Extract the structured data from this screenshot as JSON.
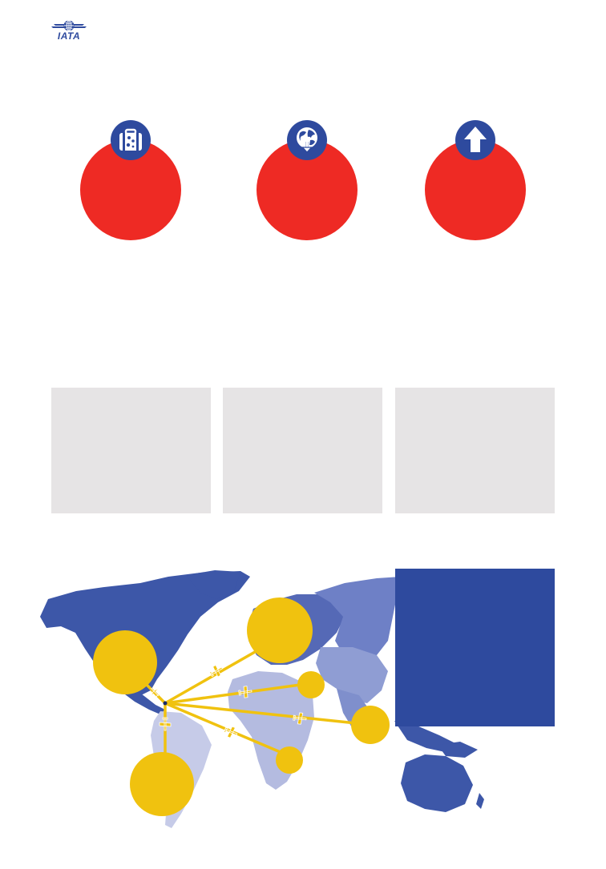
{
  "header": {
    "logo_text": "IATA",
    "logo_icon": "iata-globe-wings-icon"
  },
  "stats": [
    {
      "icon": "suitcase-icon"
    },
    {
      "icon": "globe-arrow-down-icon"
    },
    {
      "icon": "arrow-up-icon"
    }
  ],
  "colors": {
    "brand_blue": "#2e4a9e",
    "highlight_red": "#ee2a24",
    "route_yellow": "#f0c20f",
    "panel_grey": "#e6e4e5",
    "map_dark": "#3d57a8",
    "map_mid": "#7f8fcc",
    "map_light": "#b8bfe0",
    "map_pale": "#ccd1ea"
  },
  "routes": {
    "origin_marker": "origin-hub-marker",
    "destinations": [
      {
        "region": "north-america",
        "size": 0.8
      },
      {
        "region": "europe",
        "size": 0.82
      },
      {
        "region": "middle-east",
        "size": 0.34
      },
      {
        "region": "asia-pacific",
        "size": 0.48
      },
      {
        "region": "africa",
        "size": 0.34
      },
      {
        "region": "south-america",
        "size": 0.82
      }
    ]
  }
}
